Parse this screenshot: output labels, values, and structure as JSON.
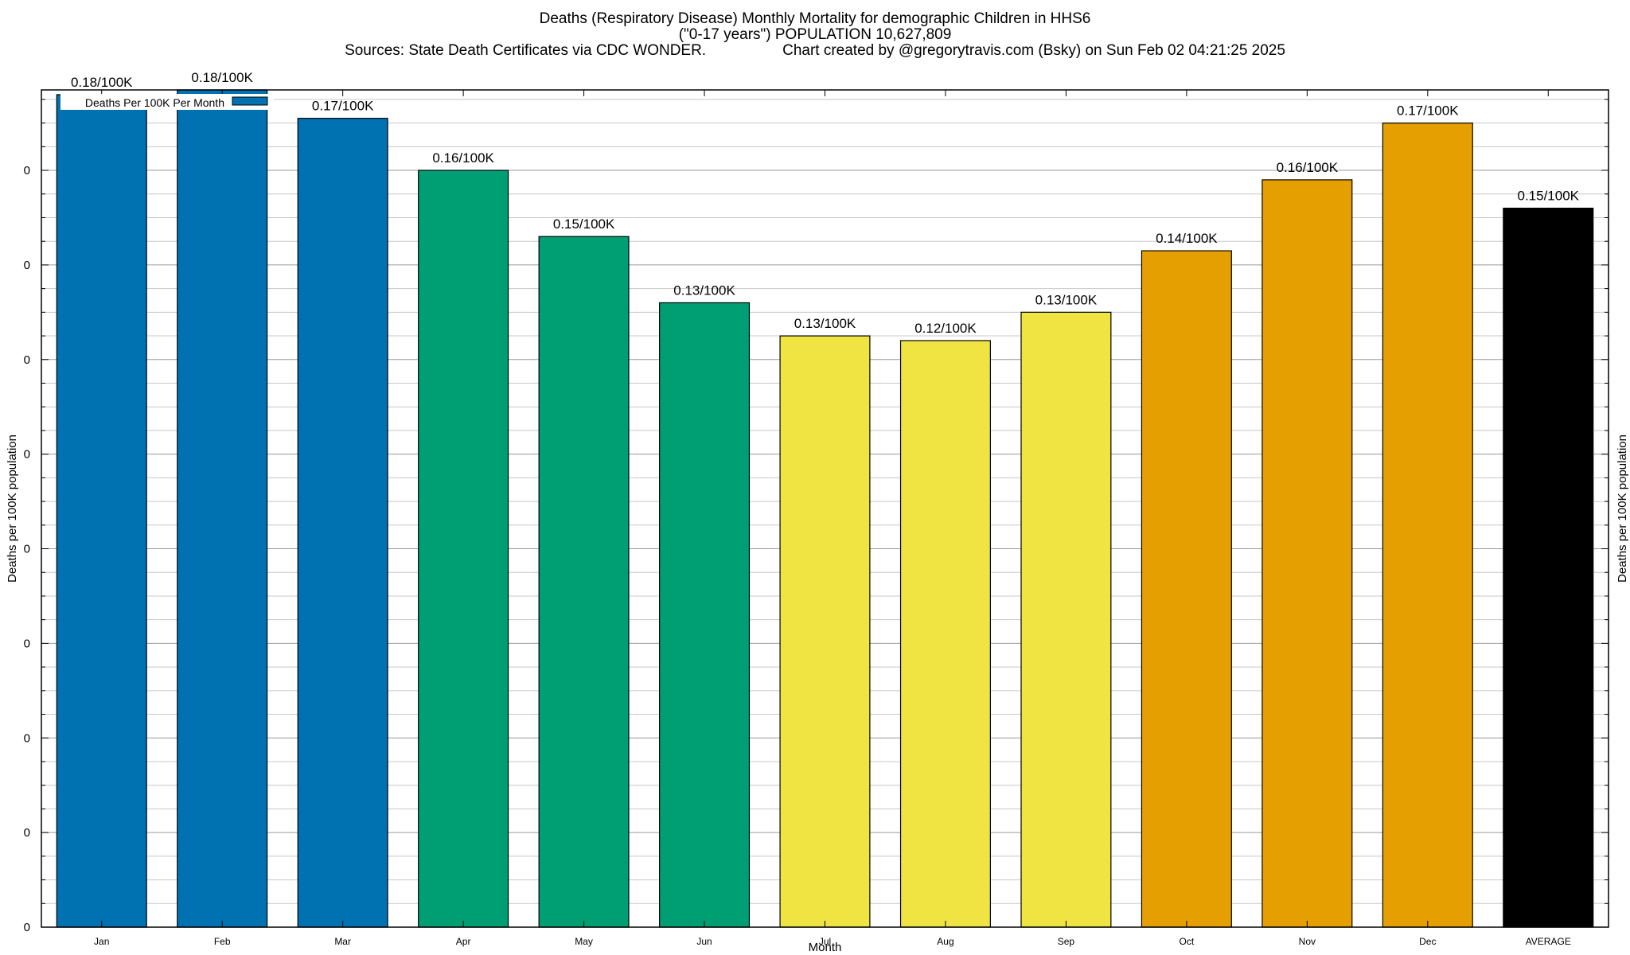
{
  "chart_data": {
    "type": "bar",
    "title": "Deaths (Respiratory Disease) Monthly Mortality for demographic Children in HHS6",
    "subtitle": "(\"0-17 years\") POPULATION 10,627,809",
    "sources": "Sources: State Death Certificates via CDC WONDER.",
    "credit": "Chart created by @gregorytravis.com (Bsky) on Sun Feb 02 04:21:25 2025",
    "xlabel": "Month",
    "ylabel": "Deaths per 100K population",
    "y2label": "Deaths per 100K population",
    "ylim": [
      0,
      0.177
    ],
    "y_tick_labels": [
      "0",
      "0",
      "0",
      "0",
      "0",
      "0",
      "0",
      "0",
      "0",
      "0"
    ],
    "y_tick_values": [
      0,
      0.02,
      0.04,
      0.06,
      0.08,
      0.1,
      0.12,
      0.14,
      0.16,
      0.18
    ],
    "grid": true,
    "legend": {
      "label": "Deaths Per 100K Per Month",
      "position": "top-left",
      "color": "#0072b2"
    },
    "categories": [
      "Jan",
      "Feb",
      "Mar",
      "Apr",
      "May",
      "Jun",
      "Jul",
      "Aug",
      "Sep",
      "Oct",
      "Nov",
      "Dec",
      "AVERAGE"
    ],
    "values": [
      0.176,
      0.177,
      0.171,
      0.16,
      0.146,
      0.132,
      0.125,
      0.124,
      0.13,
      0.143,
      0.158,
      0.17,
      0.152
    ],
    "data_labels": [
      "0.18/100K",
      "0.18/100K",
      "0.17/100K",
      "0.16/100K",
      "0.15/100K",
      "0.13/100K",
      "0.13/100K",
      "0.12/100K",
      "0.13/100K",
      "0.14/100K",
      "0.16/100K",
      "0.17/100K",
      "0.15/100K"
    ],
    "colors": [
      "#0072b2",
      "#0072b2",
      "#0072b2",
      "#009e73",
      "#009e73",
      "#009e73",
      "#f0e442",
      "#f0e442",
      "#f0e442",
      "#e69f00",
      "#e69f00",
      "#e69f00",
      "#000000"
    ]
  }
}
